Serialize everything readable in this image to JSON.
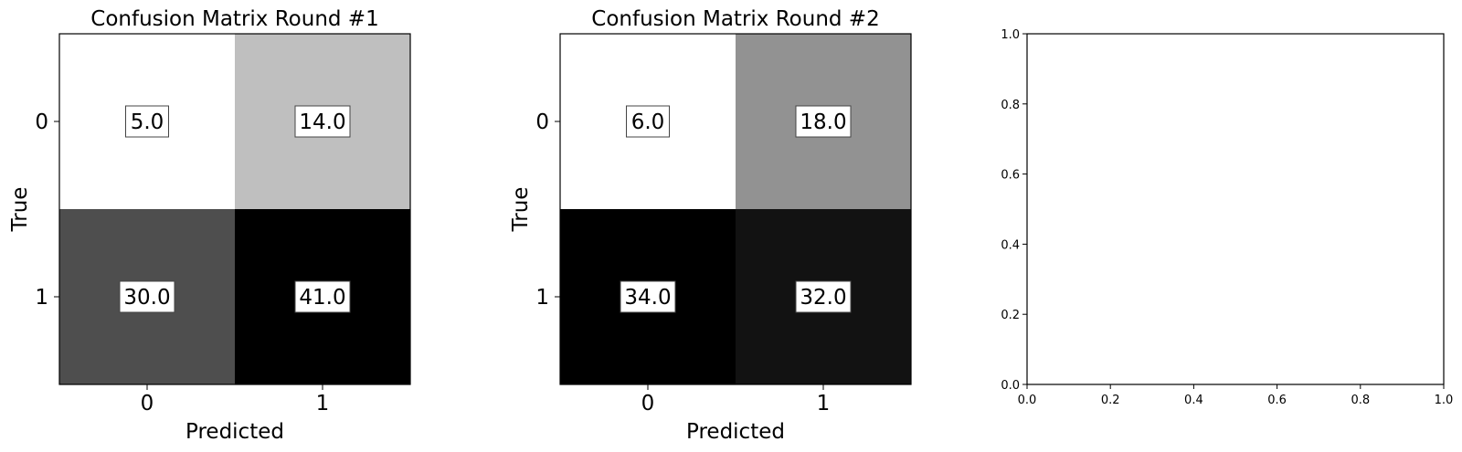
{
  "chart_data": [
    {
      "type": "heatmap",
      "title": "Confusion Matrix Round #1",
      "xlabel": "Predicted",
      "ylabel": "True",
      "x_ticks": [
        "0",
        "1"
      ],
      "y_ticks": [
        "0",
        "1"
      ],
      "colormap": "Greys",
      "matrix": [
        [
          5.0,
          14.0
        ],
        [
          30.0,
          41.0
        ]
      ],
      "cell_labels": [
        [
          "5.0",
          "14.0"
        ],
        [
          "30.0",
          "41.0"
        ]
      ]
    },
    {
      "type": "heatmap",
      "title": "Confusion Matrix Round #2",
      "xlabel": "Predicted",
      "ylabel": "True",
      "x_ticks": [
        "0",
        "1"
      ],
      "y_ticks": [
        "0",
        "1"
      ],
      "colormap": "Greys",
      "matrix": [
        [
          6.0,
          18.0
        ],
        [
          34.0,
          32.0
        ]
      ],
      "cell_labels": [
        [
          "6.0",
          "18.0"
        ],
        [
          "34.0",
          "32.0"
        ]
      ]
    },
    {
      "type": "line",
      "title": "",
      "xlabel": "",
      "ylabel": "",
      "xlim": [
        0.0,
        1.0
      ],
      "ylim": [
        0.0,
        1.0
      ],
      "x_ticks": [
        "0.0",
        "0.2",
        "0.4",
        "0.6",
        "0.8",
        "1.0"
      ],
      "y_ticks": [
        "0.0",
        "0.2",
        "0.4",
        "0.6",
        "0.8",
        "1.0"
      ],
      "series": []
    }
  ]
}
